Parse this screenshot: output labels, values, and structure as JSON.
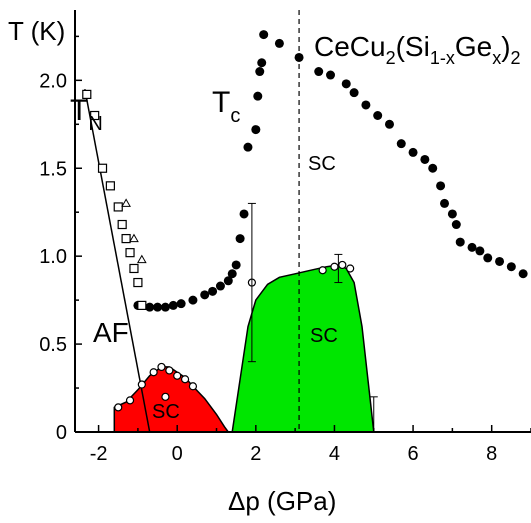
{
  "chart_data": {
    "type": "scatter",
    "title": "CeCu2(Si1-xGex)2",
    "title_parts": {
      "base": "CeCu",
      "sub1": "2",
      "mid": "(Si",
      "sub2": "1-x",
      "mid2": "Ge",
      "sub3": "x",
      "end": ")",
      "sub4": "2"
    },
    "xlabel": "Δp (GPa)",
    "ylabel": "T (K)",
    "xlim": [
      -2.6,
      9.0
    ],
    "ylim": [
      0,
      2.4
    ],
    "xticks": [
      -2,
      0,
      2,
      4,
      6,
      8
    ],
    "xtick_labels": [
      "-2",
      "0",
      "2",
      "4",
      "6",
      "8"
    ],
    "yticks": [
      0,
      0.5,
      1.0,
      1.5,
      2.0
    ],
    "ytick_labels": [
      "0",
      "0.5",
      "1.0",
      "1.5",
      "2.0"
    ],
    "annotations": {
      "tn_main": "T",
      "tn_sub": "N",
      "tc_main": "T",
      "tc_sub": "c",
      "af": "AF",
      "sc_upper": "SC",
      "sc_green": "SC",
      "sc_red": "SC"
    },
    "dashed_line_x": 3.1,
    "grid": false,
    "colors": {
      "sc_red": "#ff0000",
      "sc_green": "#00e600",
      "markers": "#000000"
    },
    "series": [
      {
        "role": "Tc",
        "marker": "filled-circle",
        "x": [
          -1.0,
          -0.7,
          -0.5,
          -0.3,
          -0.1,
          0.1,
          0.4,
          0.7,
          0.9,
          1.1,
          1.3,
          1.4,
          1.5,
          1.6,
          1.7,
          1.8,
          2.0,
          2.05,
          2.1,
          2.15,
          2.2,
          2.6,
          3.1,
          3.6,
          3.9,
          4.3,
          4.5,
          4.8,
          5.1,
          5.4,
          5.7,
          6.0,
          6.3,
          6.5,
          6.7,
          6.8,
          7.0,
          7.1,
          7.2,
          7.5,
          7.7,
          7.9,
          8.2,
          8.5,
          8.8
        ],
        "y": [
          0.72,
          0.71,
          0.71,
          0.71,
          0.72,
          0.73,
          0.75,
          0.78,
          0.8,
          0.83,
          0.86,
          0.9,
          0.95,
          1.1,
          1.24,
          1.62,
          1.72,
          1.91,
          2.05,
          2.1,
          2.26,
          2.21,
          2.13,
          2.05,
          2.03,
          1.98,
          1.93,
          1.86,
          1.8,
          1.75,
          1.64,
          1.59,
          1.55,
          1.5,
          1.4,
          1.3,
          1.24,
          1.18,
          1.08,
          1.05,
          1.03,
          0.99,
          0.97,
          0.94,
          0.9
        ]
      },
      {
        "role": "TN",
        "marker": "open-square",
        "x": [
          -2.3,
          -2.1,
          -1.9,
          -1.7,
          -1.5,
          -1.4,
          -1.3,
          -1.2,
          -1.1,
          -1.0,
          -0.9
        ],
        "y": [
          1.92,
          1.8,
          1.5,
          1.4,
          1.28,
          1.18,
          1.1,
          1.02,
          0.93,
          0.85,
          0.72
        ]
      },
      {
        "role": "TN-triangles",
        "marker": "open-triangle",
        "x": [
          -1.3,
          -1.1,
          -0.9
        ],
        "y": [
          1.3,
          1.1,
          0.98
        ]
      },
      {
        "role": "Tc-open-red-dome",
        "marker": "open-circle",
        "x": [
          -1.5,
          -1.2,
          -0.9,
          -0.6,
          -0.4,
          -0.2,
          0.0,
          0.2,
          0.4,
          -0.3
        ],
        "y": [
          0.14,
          0.18,
          0.27,
          0.34,
          0.37,
          0.35,
          0.32,
          0.3,
          0.26,
          0.2
        ]
      },
      {
        "role": "Tc-open-green-dome",
        "marker": "open-circle",
        "x": [
          1.9,
          3.7,
          4.0,
          4.2,
          4.4
        ],
        "y": [
          0.85,
          0.92,
          0.94,
          0.95,
          0.93
        ]
      },
      {
        "role": "error-bars",
        "x": [
          1.9,
          4.1,
          5.0
        ],
        "y": [
          0.85,
          0.93,
          0.1
        ],
        "yerr": [
          0.45,
          0.08,
          0.1
        ]
      }
    ],
    "tn_line": {
      "x": [
        -2.35,
        -0.7
      ],
      "y": [
        1.95,
        0.0
      ]
    },
    "sc_red_region": {
      "x": [
        -1.6,
        -1.6,
        -1.3,
        -1.0,
        -0.7,
        -0.4,
        -0.2,
        0.0,
        0.2,
        0.4,
        0.7,
        1.0,
        1.2,
        1.3
      ],
      "y": [
        0.0,
        0.14,
        0.17,
        0.24,
        0.32,
        0.37,
        0.37,
        0.34,
        0.31,
        0.26,
        0.19,
        0.1,
        0.03,
        0.0
      ]
    },
    "sc_green_region": {
      "x": [
        1.4,
        1.6,
        1.8,
        2.0,
        2.3,
        2.6,
        3.0,
        3.4,
        3.8,
        4.1,
        4.3,
        4.5,
        4.7,
        4.85,
        5.0
      ],
      "y": [
        0.0,
        0.3,
        0.6,
        0.75,
        0.84,
        0.88,
        0.9,
        0.92,
        0.94,
        0.95,
        0.93,
        0.85,
        0.6,
        0.3,
        0.0
      ]
    }
  }
}
